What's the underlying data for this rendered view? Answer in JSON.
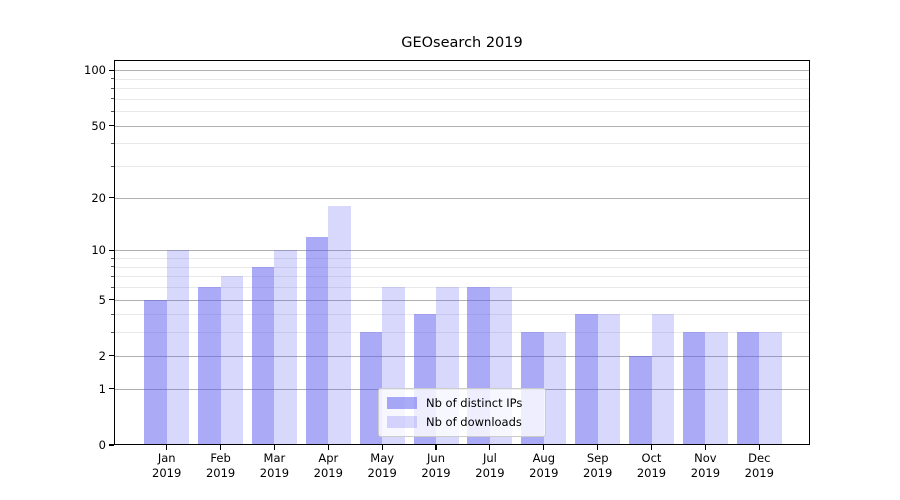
{
  "chart_data": {
    "type": "bar",
    "title": "GEOsearch 2019",
    "categories": [
      "Jan",
      "Feb",
      "Mar",
      "Apr",
      "May",
      "Jun",
      "Jul",
      "Aug",
      "Sep",
      "Oct",
      "Nov",
      "Dec"
    ],
    "x_year": "2019",
    "series": [
      {
        "name": "Nb of distinct IPs",
        "fill": "rgba(85,85,240,0.5)",
        "perceived_color": "#aaaaf8",
        "values": [
          5,
          6,
          8,
          12,
          3,
          4,
          6,
          3,
          4,
          2,
          3,
          3
        ]
      },
      {
        "name": "Nb of downloads",
        "fill": "rgba(85,85,240,0.23)",
        "perceived_color": "#d8d8fa",
        "values": [
          10,
          7,
          10,
          18,
          6,
          6,
          6,
          3,
          4,
          4,
          3,
          3
        ]
      }
    ],
    "y_axis": {
      "scale": "log10(1+v) symlog-like, 0 at baseline",
      "major_ticks": [
        0,
        1,
        2,
        5,
        10,
        20,
        50,
        100
      ],
      "major_tick_labels": [
        "0",
        "1",
        "2",
        "5",
        "10",
        "20",
        "50",
        "100"
      ],
      "minor_ticks": [
        3,
        4,
        6,
        7,
        8,
        9,
        30,
        40,
        60,
        70,
        80,
        90
      ],
      "ylim": [
        0,
        113
      ]
    },
    "grid": {
      "major_color": "#b0b0b0",
      "minor_color": "#e9e9e9",
      "on": true
    },
    "legend": {
      "position": "lower center",
      "border_color": "#cccccc"
    },
    "spine_color": "#000000"
  }
}
